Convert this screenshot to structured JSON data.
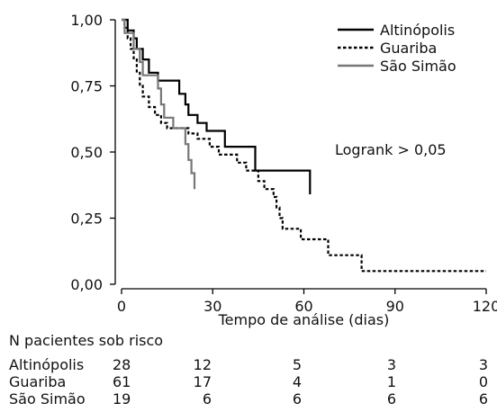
{
  "chart_data": {
    "type": "line",
    "subtype": "kaplan-meier",
    "title": "",
    "xlabel": "Tempo de análise (dias)",
    "ylabel": "",
    "xlim": [
      0,
      120
    ],
    "ylim": [
      0,
      1
    ],
    "x_ticks": [
      0,
      30,
      60,
      90,
      120
    ],
    "x_tick_labels": [
      "0",
      "30",
      "60",
      "90",
      "120"
    ],
    "y_ticks": [
      0,
      0.25,
      0.5,
      0.75,
      1
    ],
    "y_tick_labels": [
      "0,00",
      "0,25",
      "0,50",
      "0,75",
      "1,00"
    ],
    "grid": false,
    "legend_position": "top-right",
    "annotation": "Logrank > 0,05",
    "series": [
      {
        "name": "Altinópolis",
        "color": "#000000",
        "dash": "solid",
        "steps": [
          [
            0,
            1.0
          ],
          [
            2,
            0.96
          ],
          [
            4,
            0.93
          ],
          [
            5,
            0.89
          ],
          [
            7,
            0.85
          ],
          [
            9,
            0.8
          ],
          [
            12,
            0.77
          ],
          [
            19,
            0.72
          ],
          [
            21,
            0.68
          ],
          [
            22,
            0.64
          ],
          [
            25,
            0.61
          ],
          [
            28,
            0.58
          ],
          [
            34,
            0.52
          ],
          [
            44,
            0.43
          ],
          [
            62,
            0.34
          ]
        ]
      },
      {
        "name": "Guariba",
        "color": "#000000",
        "dash": "dotted",
        "steps": [
          [
            0,
            1.0
          ],
          [
            1,
            0.97
          ],
          [
            2,
            0.93
          ],
          [
            3,
            0.89
          ],
          [
            4,
            0.85
          ],
          [
            5,
            0.8
          ],
          [
            6,
            0.75
          ],
          [
            7,
            0.71
          ],
          [
            9,
            0.67
          ],
          [
            11,
            0.64
          ],
          [
            13,
            0.61
          ],
          [
            15,
            0.59
          ],
          [
            22,
            0.57
          ],
          [
            25,
            0.55
          ],
          [
            29,
            0.52
          ],
          [
            32,
            0.49
          ],
          [
            38,
            0.46
          ],
          [
            41,
            0.43
          ],
          [
            45,
            0.39
          ],
          [
            47,
            0.36
          ],
          [
            50,
            0.33
          ],
          [
            51,
            0.29
          ],
          [
            52,
            0.25
          ],
          [
            53,
            0.21
          ],
          [
            59,
            0.17
          ],
          [
            68,
            0.11
          ],
          [
            79,
            0.05
          ],
          [
            120,
            0.05
          ]
        ]
      },
      {
        "name": "São Simão",
        "color": "#777777",
        "dash": "solid",
        "steps": [
          [
            0,
            1.0
          ],
          [
            1,
            0.95
          ],
          [
            4,
            0.89
          ],
          [
            6,
            0.84
          ],
          [
            7,
            0.79
          ],
          [
            12,
            0.74
          ],
          [
            13,
            0.68
          ],
          [
            14,
            0.63
          ],
          [
            17,
            0.59
          ],
          [
            21,
            0.53
          ],
          [
            22,
            0.47
          ],
          [
            23,
            0.42
          ],
          [
            24,
            0.36
          ]
        ]
      }
    ],
    "risk_table": {
      "title": "N pacientes sob risco",
      "times": [
        0,
        30,
        60,
        90,
        120
      ],
      "rows": [
        {
          "label": "Altinópolis",
          "values": [
            "28",
            "12",
            "5",
            "3",
            "3"
          ]
        },
        {
          "label": "Guariba",
          "values": [
            "61",
            "17",
            "4",
            "1",
            "0"
          ]
        },
        {
          "label": "São Simão",
          "values": [
            "19",
            "6",
            "6",
            "6",
            "6"
          ]
        }
      ]
    }
  }
}
